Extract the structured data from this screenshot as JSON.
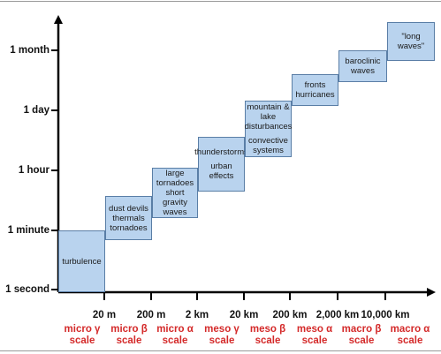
{
  "y_axis": {
    "labels": [
      "1 month",
      "1 day",
      "1 hour",
      "1 minute",
      "1 second"
    ]
  },
  "x_axis": {
    "ticks": [
      "20 m",
      "200 m",
      "2 km",
      "20 km",
      "200 km",
      "2,000 km",
      "10,000 km"
    ],
    "scales": [
      {
        "line1": "micro γ",
        "line2": "scale"
      },
      {
        "line1": "micro β",
        "line2": "scale"
      },
      {
        "line1": "micro α",
        "line2": "scale"
      },
      {
        "line1": "meso γ",
        "line2": "scale"
      },
      {
        "line1": "meso β",
        "line2": "scale"
      },
      {
        "line1": "meso α",
        "line2": "scale"
      },
      {
        "line1": "macro β",
        "line2": "scale"
      },
      {
        "line1": "macro α",
        "line2": "scale"
      }
    ]
  },
  "boxes": [
    {
      "name": "turbulence",
      "text": "turbulence"
    },
    {
      "name": "dust-devils",
      "text": "dust devils\nthermals\ntornadoes"
    },
    {
      "name": "large-tornadoes",
      "text": "large tornadoes\nshort\ngravity waves"
    },
    {
      "name": "thunderstorms",
      "text": "thunderstorms",
      "text2": "urban effects"
    },
    {
      "name": "mountain-lake",
      "text": "mountain & lake\ndisturbances",
      "text2": "convective\nsystems"
    },
    {
      "name": "fronts",
      "text": "fronts\nhurricanes"
    },
    {
      "name": "baroclinic",
      "text": "baroclinic waves"
    },
    {
      "name": "long-waves",
      "text": "\"long waves\""
    }
  ],
  "colors": {
    "box_fill": "#b9d3ee",
    "box_border": "#5a7ea6",
    "scale_text": "#d42a2a",
    "axis": "#000000"
  }
}
